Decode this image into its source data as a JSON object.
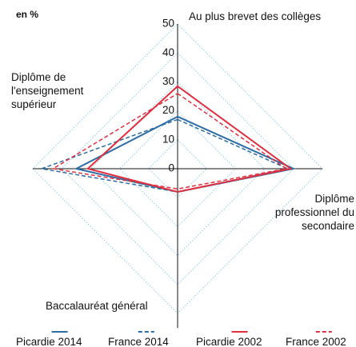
{
  "chart_data": {
    "type": "radar",
    "unit_label": "en %",
    "categories": [
      "Au plus brevet des collèges",
      "Diplôme professionnel du secondaire",
      "Baccalauréat général",
      "Diplôme de l'enseignement supérieur"
    ],
    "series": [
      {
        "name": "Picardie 2014",
        "color": "#2e6ca4",
        "dashed": false,
        "values": [
          18,
          40,
          8,
          35
        ]
      },
      {
        "name": "France 2014",
        "color": "#2e6ca4",
        "dashed": true,
        "values": [
          17,
          38,
          8,
          47
        ]
      },
      {
        "name": "Picardie 2002",
        "color": "#e03040",
        "dashed": false,
        "values": [
          28.5,
          39,
          8,
          31
        ]
      },
      {
        "name": "France 2002",
        "color": "#e03040",
        "dashed": true,
        "values": [
          26,
          37.5,
          7,
          43
        ]
      }
    ],
    "ylim": [
      0,
      50
    ],
    "yticks": [
      0,
      10,
      20,
      30,
      40,
      50
    ],
    "grid": true
  }
}
